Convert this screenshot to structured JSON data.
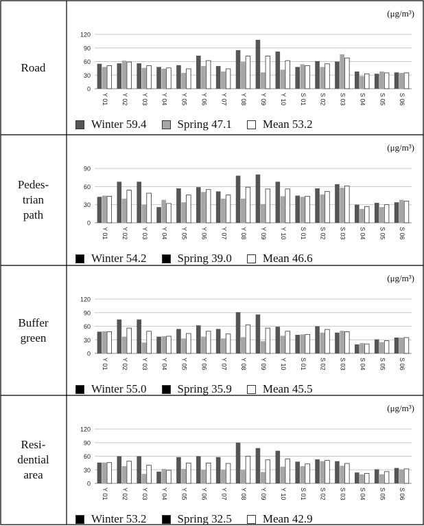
{
  "unit": "(μg/m³)",
  "categories": [
    "Y01",
    "Y02",
    "Y03",
    "Y04",
    "Y05",
    "Y06",
    "Y07",
    "Y08",
    "Y09",
    "Y10",
    "S01",
    "S02",
    "S03",
    "S04",
    "S05",
    "S06"
  ],
  "chart_data": [
    {
      "type": "bar",
      "label_lines": [
        "Road"
      ],
      "ylim": [
        0,
        120
      ],
      "yticks": [
        0,
        30,
        60,
        90,
        120
      ],
      "colors": [
        "#555555",
        "#a6a6a6",
        "#ffffff"
      ],
      "legend": [
        "Winter 59.4",
        "Spring 47.1",
        "Mean 53.2"
      ],
      "series": [
        {
          "name": "Winter",
          "values": [
            55,
            56,
            56,
            48,
            52,
            73,
            50,
            85,
            108,
            82,
            48,
            61,
            60,
            38,
            33,
            36
          ]
        },
        {
          "name": "Spring",
          "values": [
            48,
            62,
            46,
            44,
            35,
            50,
            38,
            59,
            36,
            42,
            54,
            48,
            76,
            28,
            38,
            35
          ]
        },
        {
          "name": "Mean",
          "values": [
            51,
            59,
            51,
            46,
            44,
            62,
            44,
            72,
            72,
            62,
            51,
            55,
            68,
            33,
            35,
            35
          ]
        }
      ]
    },
    {
      "type": "bar",
      "label_lines": [
        "Pedes-",
        "trian",
        "path"
      ],
      "ylim": [
        0,
        90
      ],
      "yticks": [
        0,
        30,
        60,
        90
      ],
      "colors": [
        "#555555",
        "#a6a6a6",
        "#ffffff"
      ],
      "legend": [
        "Winter 54.2",
        "Spring 39.0",
        "Mean 46.6"
      ],
      "series": [
        {
          "name": "Winter",
          "values": [
            43,
            68,
            68,
            26,
            57,
            59,
            52,
            78,
            80,
            68,
            45,
            57,
            64,
            30,
            33,
            34
          ]
        },
        {
          "name": "Spring",
          "values": [
            45,
            40,
            30,
            38,
            34,
            51,
            40,
            40,
            31,
            44,
            43,
            47,
            58,
            23,
            26,
            38
          ]
        },
        {
          "name": "Mean",
          "values": [
            44,
            54,
            49,
            32,
            46,
            55,
            46,
            59,
            56,
            56,
            44,
            52,
            61,
            27,
            30,
            36
          ]
        }
      ]
    },
    {
      "type": "bar",
      "label_lines": [
        "Buffer",
        "green"
      ],
      "ylim": [
        0,
        120
      ],
      "yticks": [
        0,
        30,
        60,
        90,
        120
      ],
      "colors": [
        "#555555",
        "#a6a6a6",
        "#ffffff"
      ],
      "legend": [
        "Winter 55.0",
        "Spring 35.9",
        "Mean 45.5"
      ],
      "series": [
        {
          "name": "Winter",
          "values": [
            48,
            75,
            75,
            37,
            54,
            62,
            54,
            91,
            86,
            59,
            41,
            60,
            46,
            20,
            31,
            35
          ]
        },
        {
          "name": "Spring",
          "values": [
            49,
            37,
            24,
            38,
            33,
            37,
            33,
            36,
            27,
            39,
            42,
            46,
            50,
            23,
            25,
            35
          ]
        },
        {
          "name": "Mean",
          "values": [
            48,
            56,
            49,
            38,
            44,
            49,
            43,
            63,
            56,
            49,
            42,
            53,
            48,
            21,
            28,
            35
          ]
        }
      ]
    },
    {
      "type": "bar",
      "label_lines": [
        "Resi-",
        "dential",
        "area"
      ],
      "ylim": [
        0,
        120
      ],
      "yticks": [
        0,
        30,
        60,
        90,
        120
      ],
      "colors": [
        "#555555",
        "#a6a6a6",
        "#ffffff"
      ],
      "legend": [
        "Winter 53.2",
        "Spring 32.5",
        "Mean 42.9"
      ],
      "series": [
        {
          "name": "Winter",
          "values": [
            46,
            60,
            60,
            26,
            58,
            60,
            58,
            90,
            78,
            72,
            48,
            53,
            49,
            24,
            31,
            34
          ]
        },
        {
          "name": "Spring",
          "values": [
            46,
            38,
            21,
            32,
            32,
            30,
            30,
            30,
            25,
            37,
            38,
            49,
            39,
            20,
            20,
            31
          ]
        },
        {
          "name": "Mean",
          "values": [
            46,
            49,
            40,
            29,
            45,
            45,
            44,
            60,
            52,
            54,
            43,
            51,
            44,
            22,
            26,
            32
          ]
        }
      ]
    }
  ]
}
